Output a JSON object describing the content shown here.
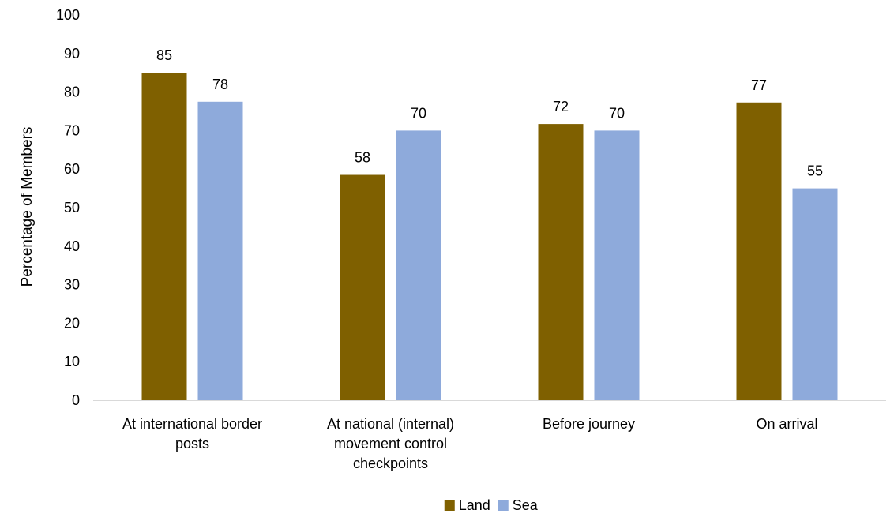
{
  "chart_data": {
    "type": "bar",
    "title": "",
    "xlabel": "",
    "ylabel": "Percentage of Members",
    "ylim": [
      0,
      100
    ],
    "yticks": [
      0,
      10,
      20,
      30,
      40,
      50,
      60,
      70,
      80,
      90,
      100
    ],
    "categories": [
      [
        "At international border",
        "posts"
      ],
      [
        "At national (internal)",
        "movement control",
        "checkpoints"
      ],
      [
        "Before journey"
      ],
      [
        "On arrival"
      ]
    ],
    "series": [
      {
        "name": "Land",
        "values": [
          85,
          58,
          72,
          77
        ],
        "bar_values": [
          85,
          58.5,
          71.7,
          77.3
        ],
        "color": "#7f6000"
      },
      {
        "name": "Sea",
        "values": [
          78,
          70,
          70,
          55
        ],
        "bar_values": [
          77.5,
          70,
          70,
          55
        ],
        "color": "#8eaadb"
      }
    ],
    "grid": false,
    "legend_position": "bottom",
    "data_labels": true
  }
}
